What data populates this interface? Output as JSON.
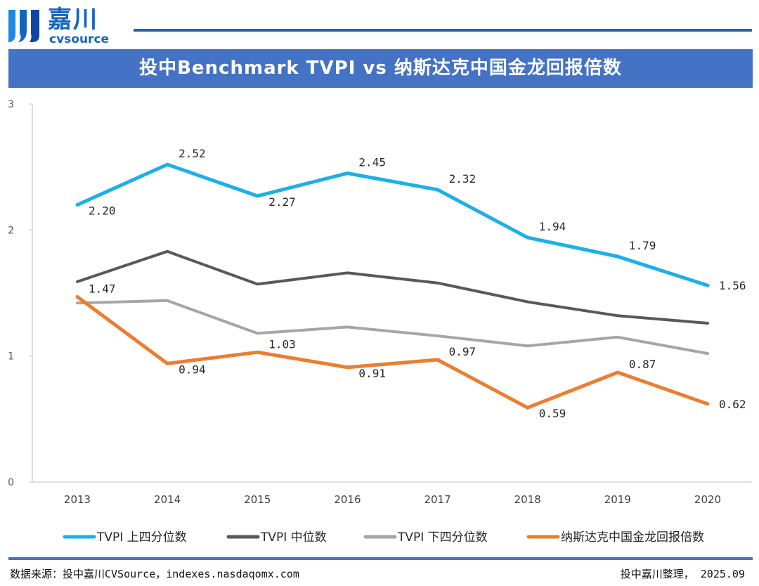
{
  "logo": {
    "name_cn": "嘉川",
    "name_en": "cvsource"
  },
  "title": "投中Benchmark TVPI vs 纳斯达克中国金龙回报倍数",
  "chart_data": {
    "type": "line",
    "title": "投中Benchmark TVPI vs 纳斯达克中国金龙回报倍数",
    "xlabel": "",
    "ylabel": "",
    "ylim": [
      0,
      3
    ],
    "yticks": [
      "0",
      "1",
      "2",
      "3"
    ],
    "categories": [
      "2013",
      "2014",
      "2015",
      "2016",
      "2017",
      "2018",
      "2019",
      "2020"
    ],
    "series": [
      {
        "name": "TVPI 上四分位数",
        "color": "#1cb0e8",
        "values": [
          2.2,
          2.52,
          2.27,
          2.45,
          2.32,
          1.94,
          1.79,
          1.56
        ],
        "labels": [
          "2.20",
          "2.52",
          "2.27",
          "2.45",
          "2.32",
          "1.94",
          "1.79",
          "1.56"
        ]
      },
      {
        "name": "TVPI 中位数",
        "color": "#595959",
        "values": [
          1.59,
          1.83,
          1.57,
          1.66,
          1.58,
          1.43,
          1.32,
          1.26
        ]
      },
      {
        "name": "TVPI 下四分位数",
        "color": "#a6a6a6",
        "values": [
          1.42,
          1.44,
          1.18,
          1.23,
          1.16,
          1.08,
          1.15,
          1.02
        ]
      },
      {
        "name": "纳斯达克中国金龙回报倍数",
        "color": "#ed7d31",
        "values": [
          1.47,
          0.94,
          1.03,
          0.91,
          0.97,
          0.59,
          0.87,
          0.62
        ],
        "labels": [
          "1.47",
          "0.94",
          "1.03",
          "0.91",
          "0.97",
          "0.59",
          "0.87",
          "0.62"
        ]
      }
    ],
    "legend_position": "bottom"
  },
  "footer": {
    "source": "数据来源：投中嘉川CVSource，indexes.nasdaqomx.com",
    "credit": "投中嘉川整理， 2025.09"
  }
}
